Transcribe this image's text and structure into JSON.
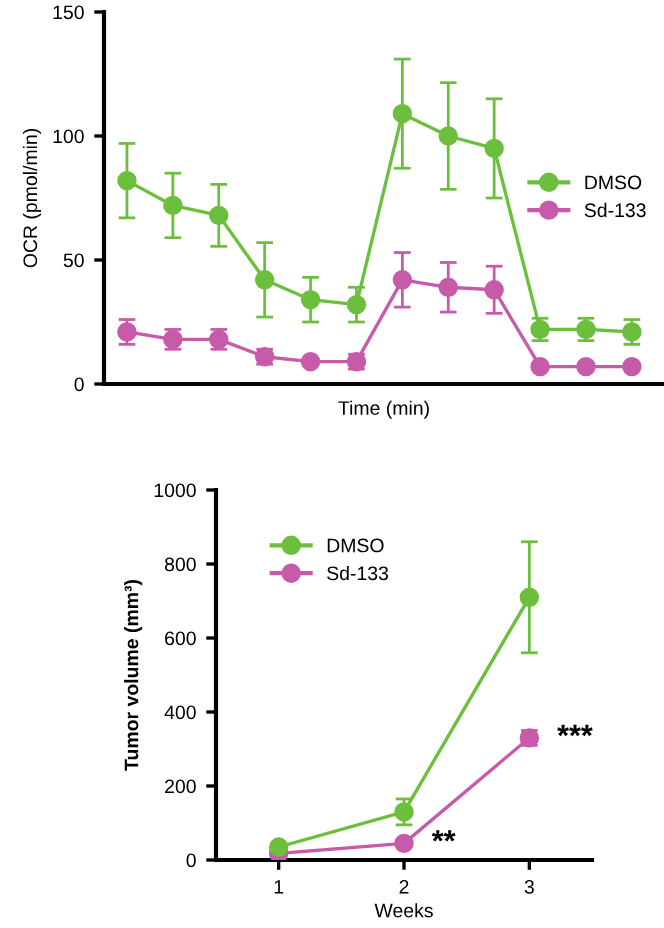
{
  "chart_data": [
    {
      "type": "line",
      "xlabel": "Time (min)",
      "ylabel": "OCR (pmol/min)",
      "categories": [
        null,
        null,
        null,
        null,
        null,
        null,
        null,
        null,
        null,
        null,
        null,
        null
      ],
      "ylim": [
        0,
        150
      ],
      "yticks": [
        0,
        50,
        100,
        150
      ],
      "marker": "circle",
      "legend": "right",
      "grid": false,
      "tick_labels": "y",
      "series": [
        {
          "name": "DMSO",
          "color": "#6cbf3c",
          "values": [
            82,
            72,
            68,
            42,
            34,
            32,
            109,
            100,
            95,
            22,
            22,
            21
          ],
          "errors": [
            15,
            13,
            12.5,
            15,
            9,
            7,
            22,
            21.5,
            20,
            4.5,
            4.5,
            5
          ]
        },
        {
          "name": "Sd-133",
          "color": "#c75aa9",
          "values": [
            21,
            18,
            18,
            11,
            9,
            9,
            42,
            39,
            38,
            7,
            7,
            7
          ],
          "errors": [
            5,
            4,
            4,
            3,
            null,
            3,
            11,
            10,
            9.5,
            null,
            null,
            null
          ]
        }
      ]
    },
    {
      "type": "line",
      "xlabel": "Weeks",
      "ylabel": "Tumor volume (mm³)",
      "x": [
        1,
        2,
        3
      ],
      "xlim": [
        0.5,
        3.5
      ],
      "xticks": [
        1,
        2,
        3
      ],
      "ylim": [
        0,
        1000
      ],
      "yticks": [
        0,
        200,
        400,
        600,
        800,
        1000
      ],
      "marker": "circle",
      "legend": "top left",
      "grid": false,
      "annotations": [
        {
          "text": "**",
          "x": 2,
          "y": 45
        },
        {
          "text": "***",
          "x": 3,
          "y": 330
        }
      ],
      "series": [
        {
          "name": "DMSO",
          "color": "#6cbf3c",
          "values": [
            35,
            130,
            710
          ],
          "errors": [
            null,
            35,
            150
          ]
        },
        {
          "name": "Sd-133",
          "color": "#c75aa9",
          "values": [
            18,
            45,
            330
          ],
          "errors": [
            null,
            null,
            20
          ]
        }
      ]
    }
  ]
}
